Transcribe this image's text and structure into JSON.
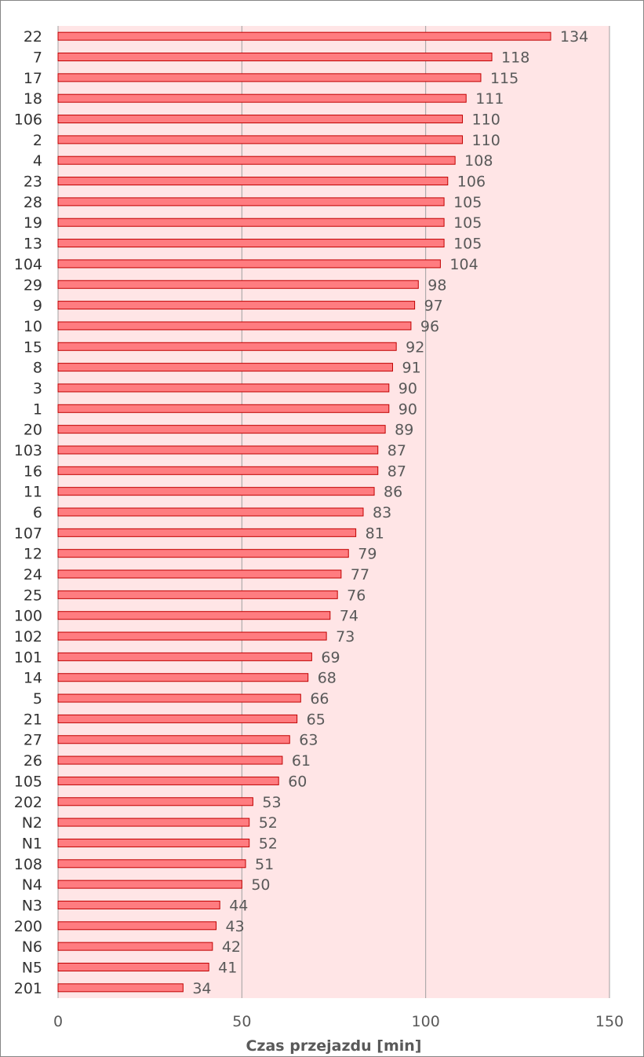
{
  "chart_data": {
    "type": "bar",
    "orientation": "horizontal",
    "categories": [
      "22",
      "7",
      "17",
      "18",
      "106",
      "2",
      "4",
      "23",
      "28",
      "19",
      "13",
      "104",
      "29",
      "9",
      "10",
      "15",
      "8",
      "3",
      "1",
      "20",
      "103",
      "16",
      "11",
      "6",
      "107",
      "12",
      "24",
      "25",
      "100",
      "102",
      "101",
      "14",
      "5",
      "21",
      "27",
      "26",
      "105",
      "202",
      "N2",
      "N1",
      "108",
      "N4",
      "N3",
      "200",
      "N6",
      "N5",
      "201"
    ],
    "values": [
      134,
      118,
      115,
      111,
      110,
      110,
      108,
      106,
      105,
      105,
      105,
      104,
      98,
      97,
      96,
      92,
      91,
      90,
      90,
      89,
      87,
      87,
      86,
      83,
      81,
      79,
      77,
      76,
      74,
      73,
      69,
      68,
      66,
      65,
      63,
      61,
      60,
      53,
      52,
      52,
      51,
      50,
      44,
      43,
      42,
      41,
      34
    ],
    "title": "",
    "xlabel": "Czas przejazdu [min]",
    "ylabel": "",
    "xlim": [
      0,
      150
    ],
    "xticks": [
      0,
      50,
      100,
      150
    ],
    "grid": true,
    "data_labels": true,
    "legend": "none",
    "colors": {
      "bar_fill": "#ff7c80",
      "bar_stroke": "#c00000",
      "plot_background": "#ffe5e6",
      "gridline": "#a0a0a0"
    }
  }
}
